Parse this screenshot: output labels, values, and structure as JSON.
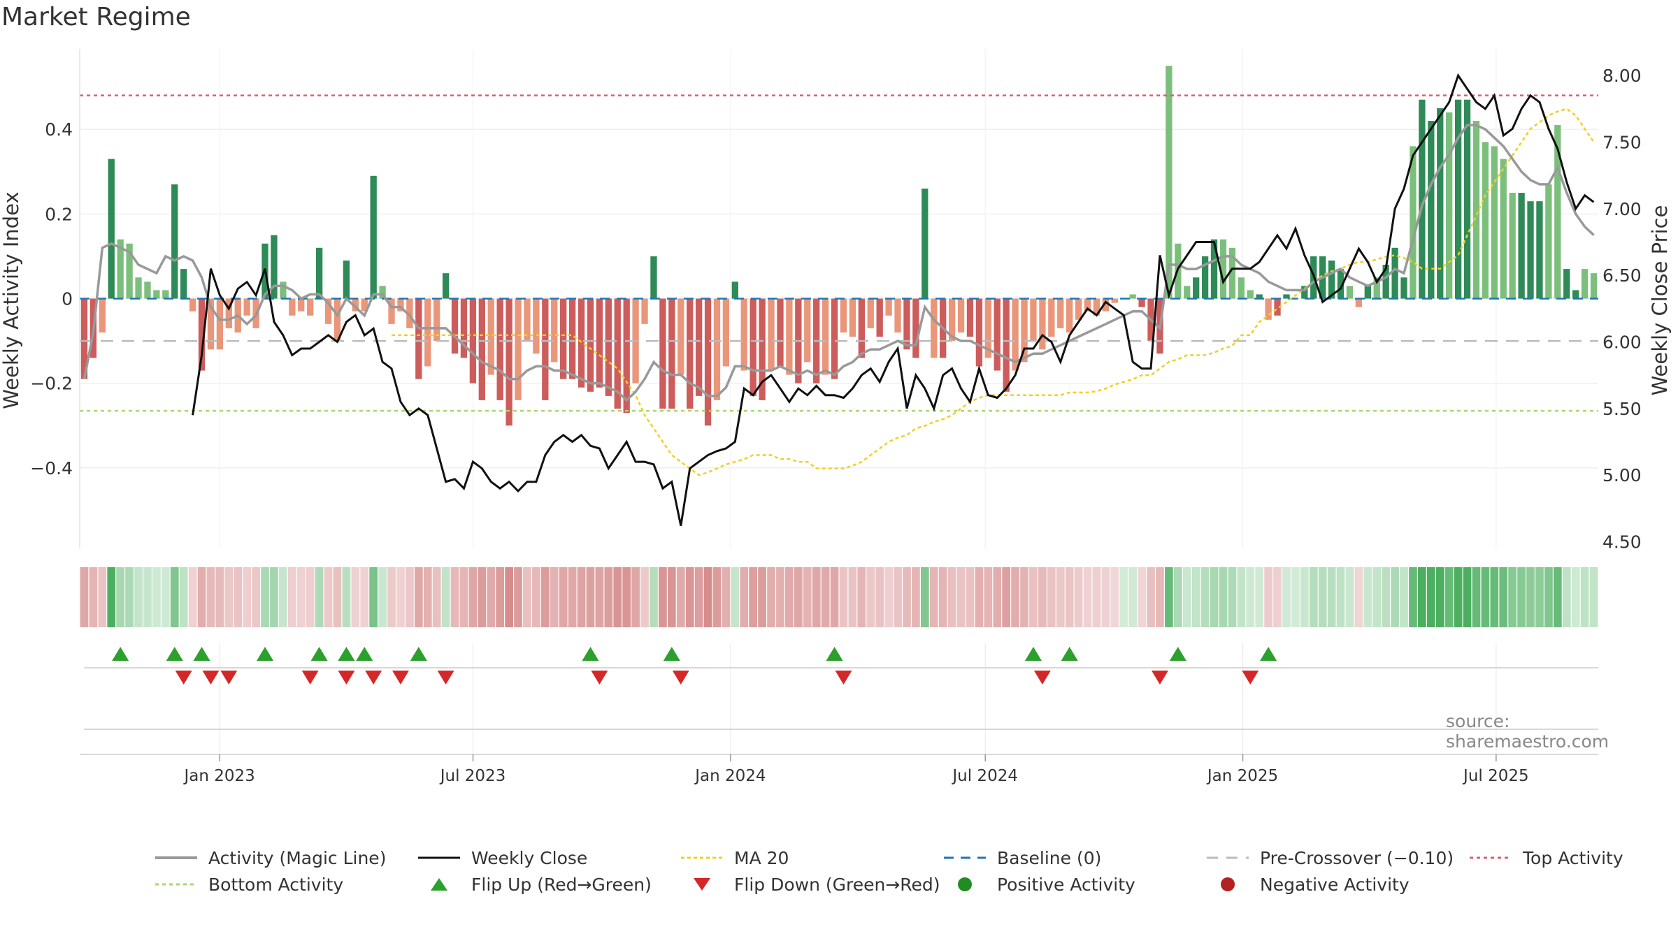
{
  "title": "Market Regime",
  "source": "source: sharemaestro.com",
  "colors": {
    "strong_green": "#2e8b57",
    "light_green": "#7cbf7c",
    "strong_red": "#cd5c5c",
    "light_red": "#e9967a",
    "magic_line": "#999999",
    "close_line": "#111111",
    "ma20": "#f0d020",
    "baseline": "#1f77b4",
    "pre_cross": "#bbbbbb",
    "top_activity": "#d9606a",
    "bottom_activity": "#a6d96a",
    "flip_up": "#2ca02c",
    "flip_down": "#d62728"
  },
  "chart_data": {
    "type": "bar",
    "title": "Market Regime",
    "ylabel_left": "Weekly Activity Index",
    "ylabel_right": "Weekly Close Price",
    "yticks_left": [
      "0.4",
      "0.2",
      "0",
      "−0.2",
      "−0.4"
    ],
    "yticks_left_values": [
      0.4,
      0.2,
      0,
      -0.2,
      -0.4
    ],
    "yticks_right": [
      "8.00",
      "7.50",
      "7.00",
      "6.50",
      "6.00",
      "5.50",
      "5.00",
      "4.50"
    ],
    "yticks_right_values": [
      8.0,
      7.5,
      7.0,
      6.5,
      6.0,
      5.5,
      5.0,
      4.5
    ],
    "ylim_left": [
      -0.59,
      0.59
    ],
    "ylim_right": [
      4.45,
      8.2
    ],
    "x_start": "2022-09-23",
    "x_end": "2025-09-12",
    "xticks": [
      {
        "date": "2023-01-01",
        "label": "Jan 2023"
      },
      {
        "date": "2023-07-01",
        "label": "Jul 2023"
      },
      {
        "date": "2024-01-01",
        "label": "Jan 2024"
      },
      {
        "date": "2024-07-01",
        "label": "Jul 2024"
      },
      {
        "date": "2025-01-01",
        "label": "Jan 2025"
      },
      {
        "date": "2025-07-01",
        "label": "Jul 2025"
      }
    ],
    "reference_lines": {
      "baseline": 0,
      "pre_crossover": -0.1,
      "top_activity": 0.48,
      "bottom_activity": -0.265
    },
    "activity": [
      -0.19,
      -0.14,
      -0.08,
      0.33,
      0.14,
      0.13,
      0.05,
      0.04,
      0.02,
      0.02,
      0.27,
      0.07,
      -0.03,
      -0.17,
      -0.12,
      -0.12,
      -0.07,
      -0.08,
      -0.04,
      -0.07,
      0.13,
      0.15,
      0.04,
      -0.04,
      -0.03,
      -0.04,
      0.12,
      -0.06,
      -0.1,
      0.09,
      -0.03,
      -0.03,
      0.29,
      0.03,
      -0.06,
      -0.03,
      -0.07,
      -0.19,
      -0.16,
      -0.1,
      0.06,
      -0.13,
      -0.14,
      -0.2,
      -0.24,
      -0.18,
      -0.24,
      -0.3,
      -0.24,
      -0.1,
      -0.13,
      -0.24,
      -0.15,
      -0.19,
      -0.19,
      -0.21,
      -0.22,
      -0.21,
      -0.23,
      -0.26,
      -0.27,
      -0.2,
      -0.06,
      0.1,
      -0.26,
      -0.26,
      -0.18,
      -0.26,
      -0.23,
      -0.3,
      -0.24,
      -0.16,
      0.04,
      -0.17,
      -0.23,
      -0.24,
      -0.17,
      -0.16,
      -0.18,
      -0.2,
      -0.15,
      -0.2,
      -0.18,
      -0.19,
      -0.08,
      -0.09,
      -0.14,
      -0.07,
      -0.09,
      -0.04,
      -0.08,
      -0.12,
      -0.14,
      0.26,
      -0.14,
      -0.14,
      -0.1,
      -0.08,
      -0.09,
      -0.16,
      -0.14,
      -0.17,
      -0.22,
      -0.17,
      -0.15,
      -0.1,
      -0.12,
      -0.09,
      -0.07,
      -0.08,
      -0.05,
      -0.03,
      -0.04,
      -0.03,
      -0.01,
      0.0,
      0.01,
      -0.02,
      -0.1,
      -0.13,
      0.55,
      0.13,
      0.03,
      0.05,
      0.1,
      0.14,
      0.14,
      0.12,
      0.05,
      0.02,
      0.01,
      -0.05,
      -0.04,
      0.01,
      0.0,
      0.03,
      0.1,
      0.1,
      0.09,
      0.07,
      0.03,
      -0.02,
      0.03,
      0.05,
      0.08,
      0.12,
      0.05,
      0.36,
      0.47,
      0.42,
      0.45,
      0.44,
      0.47,
      0.47,
      0.42,
      0.37,
      0.36,
      0.33,
      0.25,
      0.25,
      0.23,
      0.23,
      0.27,
      0.41,
      0.07,
      0.02,
      0.07,
      0.06
    ],
    "activity_strength": [
      "s",
      "s",
      "l",
      "s",
      "l",
      "l",
      "l",
      "l",
      "l",
      "l",
      "s",
      "s",
      "l",
      "s",
      "l",
      "l",
      "l",
      "l",
      "l",
      "l",
      "s",
      "s",
      "l",
      "l",
      "l",
      "l",
      "s",
      "l",
      "l",
      "s",
      "l",
      "l",
      "s",
      "l",
      "l",
      "l",
      "l",
      "s",
      "l",
      "l",
      "s",
      "s",
      "s",
      "s",
      "s",
      "l",
      "s",
      "s",
      "l",
      "l",
      "l",
      "s",
      "l",
      "s",
      "s",
      "s",
      "s",
      "s",
      "s",
      "s",
      "s",
      "l",
      "l",
      "s",
      "s",
      "s",
      "l",
      "s",
      "s",
      "s",
      "l",
      "l",
      "s",
      "l",
      "s",
      "s",
      "l",
      "s",
      "l",
      "s",
      "l",
      "s",
      "l",
      "s",
      "l",
      "l",
      "s",
      "l",
      "s",
      "l",
      "l",
      "s",
      "s",
      "s",
      "l",
      "s",
      "l",
      "l",
      "s",
      "s",
      "l",
      "s",
      "s",
      "l",
      "l",
      "l",
      "l",
      "l",
      "l",
      "l",
      "l",
      "l",
      "l",
      "l",
      "l",
      "l",
      "l",
      "s",
      "s",
      "s",
      "l",
      "l",
      "l",
      "s",
      "s",
      "s",
      "l",
      "l",
      "l",
      "l",
      "s",
      "l",
      "s",
      "s",
      "l",
      "s",
      "s",
      "s",
      "s",
      "s",
      "l",
      "l",
      "s",
      "l",
      "s",
      "s",
      "s",
      "l",
      "s",
      "s",
      "s",
      "l",
      "s",
      "s",
      "l",
      "l",
      "l",
      "l",
      "l",
      "s",
      "s",
      "s",
      "l",
      "l",
      "s",
      "s"
    ],
    "magic_line": [
      -0.19,
      -0.08,
      0.12,
      0.13,
      0.12,
      0.11,
      0.08,
      0.07,
      0.06,
      0.1,
      0.09,
      0.1,
      0.09,
      0.05,
      -0.02,
      -0.05,
      -0.05,
      -0.04,
      -0.06,
      -0.04,
      0.01,
      0.03,
      0.03,
      0.02,
      -0.0,
      0.01,
      0.01,
      -0.01,
      -0.04,
      0.0,
      -0.02,
      -0.04,
      0.01,
      0.01,
      -0.02,
      -0.02,
      -0.04,
      -0.07,
      -0.07,
      -0.07,
      -0.07,
      -0.09,
      -0.11,
      -0.13,
      -0.15,
      -0.16,
      -0.17,
      -0.19,
      -0.19,
      -0.17,
      -0.16,
      -0.16,
      -0.17,
      -0.17,
      -0.18,
      -0.19,
      -0.2,
      -0.2,
      -0.21,
      -0.22,
      -0.24,
      -0.22,
      -0.19,
      -0.15,
      -0.17,
      -0.18,
      -0.18,
      -0.2,
      -0.21,
      -0.23,
      -0.23,
      -0.21,
      -0.16,
      -0.16,
      -0.17,
      -0.17,
      -0.17,
      -0.16,
      -0.17,
      -0.18,
      -0.17,
      -0.18,
      -0.17,
      -0.18,
      -0.16,
      -0.15,
      -0.13,
      -0.12,
      -0.12,
      -0.11,
      -0.1,
      -0.11,
      -0.11,
      -0.02,
      -0.05,
      -0.07,
      -0.09,
      -0.1,
      -0.1,
      -0.11,
      -0.12,
      -0.13,
      -0.14,
      -0.15,
      -0.14,
      -0.13,
      -0.13,
      -0.12,
      -0.11,
      -0.1,
      -0.09,
      -0.08,
      -0.07,
      -0.06,
      -0.05,
      -0.04,
      -0.03,
      -0.03,
      -0.05,
      -0.07,
      0.08,
      0.08,
      0.07,
      0.07,
      0.08,
      0.09,
      0.1,
      0.1,
      0.08,
      0.07,
      0.06,
      0.04,
      0.03,
      0.02,
      0.02,
      0.02,
      0.04,
      0.05,
      0.06,
      0.07,
      0.05,
      0.04,
      0.03,
      0.04,
      0.05,
      0.07,
      0.06,
      0.14,
      0.22,
      0.27,
      0.31,
      0.34,
      0.38,
      0.41,
      0.41,
      0.4,
      0.38,
      0.36,
      0.33,
      0.3,
      0.28,
      0.27,
      0.27,
      0.31,
      0.25,
      0.2,
      0.17,
      0.15
    ],
    "weekly_close": [
      5.45,
      5.9,
      6.55,
      6.35,
      6.25,
      6.4,
      6.45,
      6.35,
      6.55,
      6.15,
      6.05,
      5.9,
      5.95,
      5.95,
      6.0,
      6.05,
      6.0,
      6.15,
      6.2,
      6.05,
      6.1,
      5.85,
      5.8,
      5.55,
      5.45,
      5.5,
      5.45,
      5.2,
      4.95,
      4.97,
      4.9,
      5.1,
      5.05,
      4.95,
      4.9,
      4.95,
      4.88,
      4.95,
      4.95,
      5.15,
      5.25,
      5.3,
      5.25,
      5.3,
      5.22,
      5.2,
      5.05,
      5.15,
      5.25,
      5.1,
      5.1,
      5.08,
      4.9,
      4.95,
      4.62,
      5.05,
      5.1,
      5.15,
      5.18,
      5.2,
      5.25,
      5.65,
      5.6,
      5.7,
      5.75,
      5.65,
      5.55,
      5.65,
      5.6,
      5.67,
      5.6,
      5.6,
      5.58,
      5.65,
      5.75,
      5.8,
      5.7,
      5.85,
      5.95,
      5.5,
      5.75,
      5.65,
      5.5,
      5.75,
      5.8,
      5.65,
      5.55,
      5.8,
      5.6,
      5.58,
      5.65,
      5.75,
      5.95,
      5.95,
      6.05,
      6.0,
      5.85,
      6.05,
      6.15,
      6.25,
      6.2,
      6.3,
      6.25,
      6.2,
      5.85,
      5.8,
      5.8,
      6.65,
      6.35,
      6.55,
      6.65,
      6.75,
      6.75,
      6.75,
      6.45,
      6.55,
      6.55,
      6.55,
      6.6,
      6.7,
      6.8,
      6.7,
      6.85,
      6.65,
      6.5,
      6.3,
      6.35,
      6.4,
      6.55,
      6.7,
      6.6,
      6.45,
      6.55,
      7.0,
      7.15,
      7.4,
      7.5,
      7.6,
      7.7,
      7.8,
      8.0,
      7.9,
      7.8,
      7.75,
      7.85,
      7.55,
      7.6,
      7.75,
      7.85,
      7.8,
      7.6,
      7.45,
      7.2,
      7.0,
      7.1,
      7.05
    ],
    "ma20": [
      6.05,
      6.05,
      6.05,
      6.05,
      6.05,
      6.05,
      6.05,
      6.05,
      6.05,
      6.05,
      6.05,
      6.05,
      6.05,
      6.05,
      6.05,
      6.05,
      6.05,
      6.05,
      6.05,
      6.05,
      6.05,
      6.0,
      5.95,
      5.9,
      5.85,
      5.8,
      5.7,
      5.6,
      5.45,
      5.35,
      5.25,
      5.15,
      5.1,
      5.05,
      5.0,
      5.02,
      5.05,
      5.08,
      5.1,
      5.12,
      5.15,
      5.15,
      5.15,
      5.12,
      5.12,
      5.1,
      5.1,
      5.05,
      5.05,
      5.05,
      5.05,
      5.07,
      5.1,
      5.15,
      5.2,
      5.25,
      5.28,
      5.3,
      5.35,
      5.37,
      5.4,
      5.42,
      5.45,
      5.5,
      5.55,
      5.58,
      5.6,
      5.6,
      5.6,
      5.6,
      5.6,
      5.6,
      5.6,
      5.6,
      5.6,
      5.62,
      5.62,
      5.62,
      5.63,
      5.65,
      5.68,
      5.7,
      5.72,
      5.75,
      5.75,
      5.8,
      5.85,
      5.87,
      5.9,
      5.9,
      5.9,
      5.92,
      5.95,
      5.97,
      6.05,
      6.05,
      6.15,
      6.2,
      6.25,
      6.3,
      6.35,
      6.4,
      6.45,
      6.5,
      6.53,
      6.55,
      6.58,
      6.6,
      6.6,
      6.62,
      6.64,
      6.65,
      6.63,
      6.6,
      6.55,
      6.55,
      6.55,
      6.6,
      6.65,
      6.8,
      6.95,
      7.1,
      7.2,
      7.3,
      7.4,
      7.5,
      7.6,
      7.65,
      7.7,
      7.73,
      7.75,
      7.7,
      7.6,
      7.5
    ],
    "flip_up_weeks": [
      4,
      10,
      13,
      20,
      26,
      29,
      31,
      37,
      56,
      65,
      83,
      105,
      109,
      121,
      131
    ],
    "flip_down_weeks": [
      11,
      14,
      16,
      25,
      29,
      32,
      35,
      40,
      57,
      66,
      84,
      106,
      119,
      129
    ],
    "legend": [
      {
        "label": "Activity (Magic Line)",
        "style": "magic"
      },
      {
        "label": "Weekly Close",
        "style": "close"
      },
      {
        "label": "MA 20",
        "style": "ma20"
      },
      {
        "label": "Baseline (0)",
        "style": "baseline"
      },
      {
        "label": "Pre-Crossover (−0.10)",
        "style": "pre"
      },
      {
        "label": "Top Activity",
        "style": "top"
      },
      {
        "label": "Bottom Activity",
        "style": "bottom"
      },
      {
        "label": "Flip Up (Red→Green)",
        "style": "flipup"
      },
      {
        "label": "Flip Down (Green→Red)",
        "style": "flipdown"
      },
      {
        "label": "Positive Activity",
        "style": "pos"
      },
      {
        "label": "Negative Activity",
        "style": "neg"
      }
    ]
  }
}
